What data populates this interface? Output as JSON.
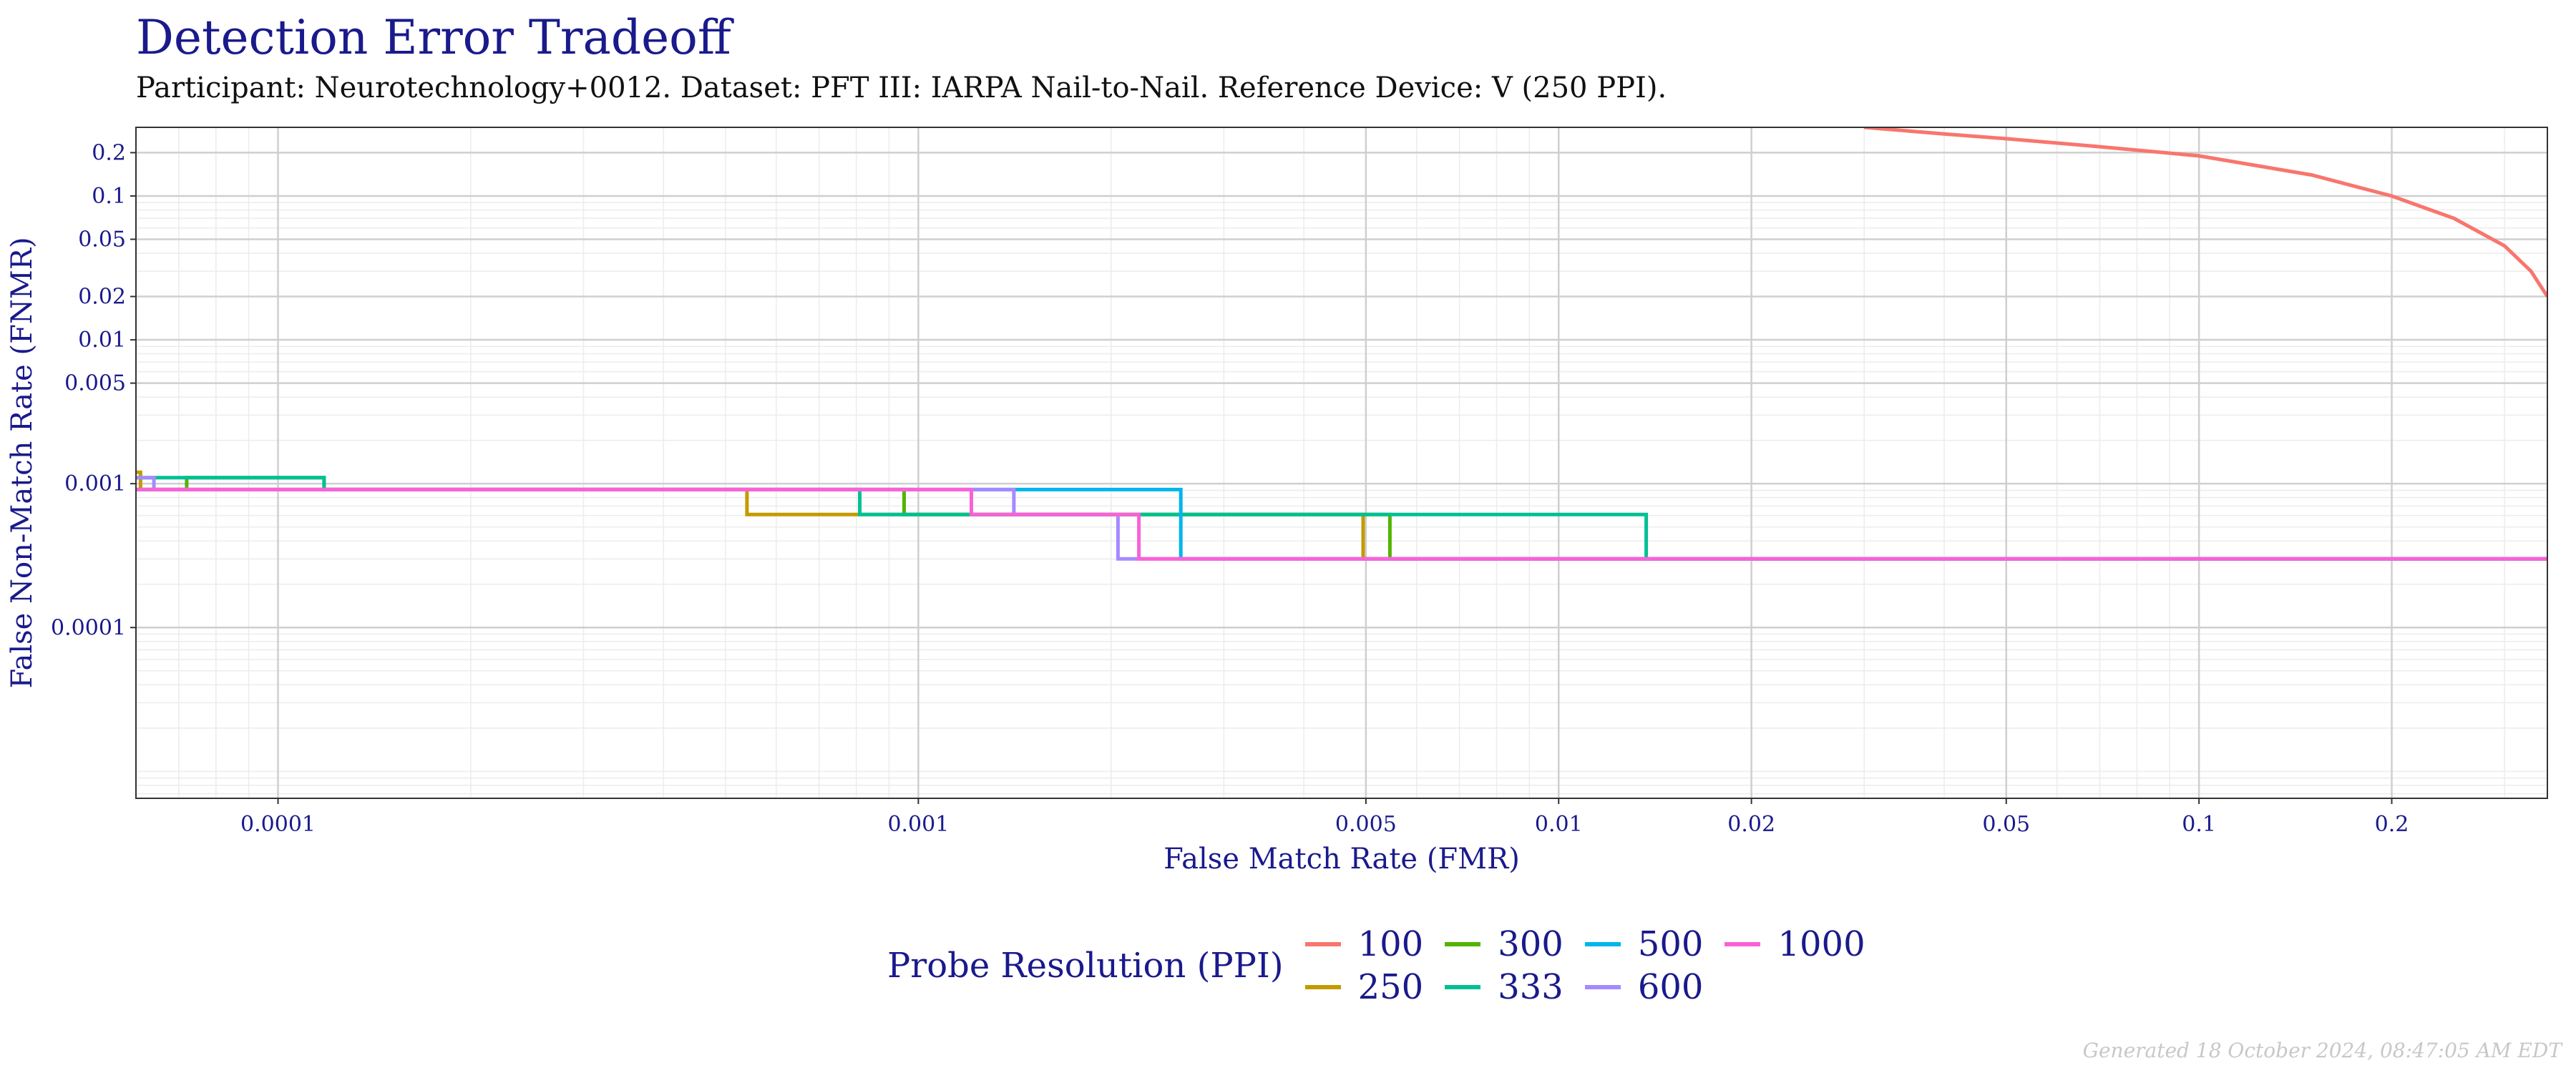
{
  "title": "Detection Error Tradeoff",
  "subtitle": "Participant: Neurotechnology+0012. Dataset: PFT III: IARPA Nail-to-Nail. Reference Device: V (250 PPI).",
  "generated": "Generated 18 October 2024, 08:47:05 AM EDT",
  "chart_data": {
    "type": "line",
    "title": "Detection Error Tradeoff",
    "xlabel": "False Match Rate (FMR)",
    "ylabel": "False Non-Match Rate (FNMR)",
    "x_scale": "log",
    "y_scale": "log",
    "xlim": [
      6e-05,
      0.35
    ],
    "ylim": [
      6.5e-06,
      0.3
    ],
    "x_ticks": [
      0.0001,
      0.001,
      0.005,
      0.01,
      0.02,
      0.05,
      0.1,
      0.2
    ],
    "x_tick_labels": [
      "0.0001",
      "0.001",
      "0.005",
      "0.01",
      "0.02",
      "0.05",
      "0.1",
      "0.2"
    ],
    "y_ticks": [
      0.0001,
      0.001,
      0.005,
      0.01,
      0.02,
      0.05,
      0.1,
      0.2
    ],
    "y_tick_labels": [
      "0.0001",
      "0.001",
      "0.005",
      "0.01",
      "0.02",
      "0.05",
      "0.1",
      "0.2"
    ],
    "grid": true,
    "legend_title": "Probe Resolution (PPI)",
    "legend_position": "bottom",
    "series": [
      {
        "name": "100",
        "color": "#F8766D",
        "points": [
          [
            0.03,
            0.3
          ],
          [
            0.04,
            0.27
          ],
          [
            0.05,
            0.25
          ],
          [
            0.07,
            0.22
          ],
          [
            0.1,
            0.19
          ],
          [
            0.15,
            0.14
          ],
          [
            0.2,
            0.1
          ],
          [
            0.25,
            0.07
          ],
          [
            0.3,
            0.045
          ],
          [
            0.33,
            0.03
          ],
          [
            0.35,
            0.02
          ]
        ]
      },
      {
        "name": "250",
        "color": "#C49A00",
        "points": [
          [
            6e-05,
            0.0012
          ],
          [
            6.1e-05,
            0.0012
          ],
          [
            6.1e-05,
            0.00091
          ],
          [
            0.00054,
            0.00091
          ],
          [
            0.00054,
            0.00061
          ],
          [
            0.00081,
            0.00061
          ],
          [
            0.00081,
            0.00061
          ],
          [
            0.00495,
            0.00061
          ],
          [
            0.00495,
            0.0003
          ],
          [
            0.35,
            0.0003
          ]
        ]
      },
      {
        "name": "300",
        "color": "#53B400",
        "points": [
          [
            6e-05,
            0.00091
          ],
          [
            7.2e-05,
            0.00091
          ],
          [
            7.2e-05,
            0.0011
          ],
          [
            0.000118,
            0.0011
          ],
          [
            0.000118,
            0.00091
          ],
          [
            0.00095,
            0.00091
          ],
          [
            0.00095,
            0.00061
          ],
          [
            0.00545,
            0.00061
          ],
          [
            0.00545,
            0.0003
          ],
          [
            0.35,
            0.0003
          ]
        ]
      },
      {
        "name": "333",
        "color": "#00C094",
        "points": [
          [
            6e-05,
            0.0011
          ],
          [
            0.000118,
            0.0011
          ],
          [
            0.000118,
            0.00091
          ],
          [
            0.00081,
            0.00091
          ],
          [
            0.00081,
            0.00061
          ],
          [
            0.0137,
            0.00061
          ],
          [
            0.0137,
            0.0003
          ],
          [
            0.35,
            0.0003
          ]
        ]
      },
      {
        "name": "500",
        "color": "#00B6EB",
        "points": [
          [
            6e-05,
            0.00091
          ],
          [
            0.00141,
            0.00091
          ],
          [
            0.00141,
            0.00091
          ],
          [
            0.00257,
            0.00091
          ],
          [
            0.00257,
            0.0003
          ],
          [
            0.35,
            0.0003
          ]
        ]
      },
      {
        "name": "600",
        "color": "#A58AFF",
        "points": [
          [
            6e-05,
            0.0011
          ],
          [
            6.4e-05,
            0.0011
          ],
          [
            6.4e-05,
            0.00091
          ],
          [
            0.00121,
            0.00091
          ],
          [
            0.00141,
            0.00091
          ],
          [
            0.00141,
            0.00061
          ],
          [
            0.00205,
            0.00061
          ],
          [
            0.00205,
            0.0003
          ],
          [
            0.35,
            0.0003
          ]
        ]
      },
      {
        "name": "1000",
        "color": "#FB61D7",
        "points": [
          [
            6e-05,
            0.00091
          ],
          [
            0.00121,
            0.00091
          ],
          [
            0.00121,
            0.00061
          ],
          [
            0.00221,
            0.00061
          ],
          [
            0.00221,
            0.0003
          ],
          [
            0.35,
            0.0003
          ]
        ]
      }
    ]
  }
}
